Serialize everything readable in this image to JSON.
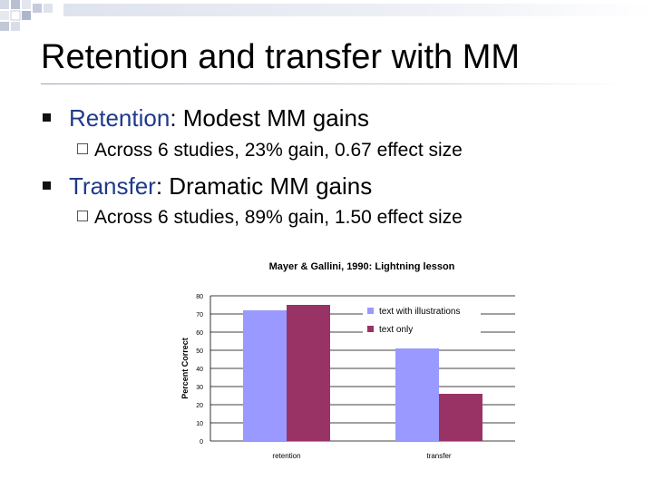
{
  "slide": {
    "title": "Retention and transfer with MM",
    "bullets": [
      {
        "label": "Retention",
        "rest": ": Modest MM gains",
        "sub": "Across 6 studies, 23% gain, 0.67 effect size"
      },
      {
        "label": "Transfer",
        "rest": ": Dramatic MM gains",
        "sub": "Across 6 studies, 89% gain, 1.50 effect size"
      }
    ]
  },
  "chart_data": {
    "type": "bar",
    "title": "Mayer & Gallini, 1990: Lightning lesson",
    "ylabel": "Percent Correct",
    "xlabel": "",
    "ylim": [
      0,
      80
    ],
    "yticks": [
      0,
      10,
      20,
      30,
      40,
      50,
      60,
      70,
      80
    ],
    "grid": true,
    "legend": "top-right",
    "categories": [
      "retention",
      "transfer"
    ],
    "series": [
      {
        "name": "text with illustrations",
        "color": "#9999ff",
        "values": [
          72,
          51
        ]
      },
      {
        "name": "text only",
        "color": "#993366",
        "values": [
          75,
          26
        ]
      }
    ]
  }
}
